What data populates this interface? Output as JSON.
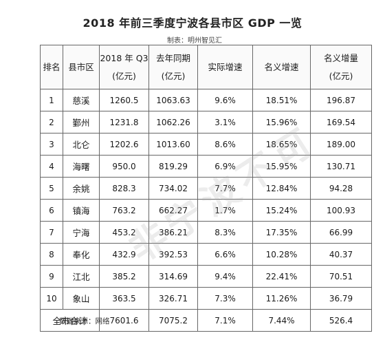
{
  "title": "2018 年前三季度宁波各县市区 GDP 一览",
  "maker": "制表：明州智见汇",
  "table": {
    "headers": {
      "rank": "排名",
      "county": "县市区",
      "q3": [
        "2018 年 Q3",
        "(亿元)"
      ],
      "last_year": [
        "去年同期",
        "(亿元)"
      ],
      "real_growth": "实际增速",
      "nominal_growth": "名义增速",
      "nominal_increase": [
        "名义增量",
        "(亿元)"
      ]
    },
    "rows": [
      {
        "rank": "1",
        "name": "慈溪",
        "q3": "1260.5",
        "last": "1063.63",
        "real": "9.6%",
        "nominal": "18.51%",
        "increase": "196.87"
      },
      {
        "rank": "2",
        "name": "鄞州",
        "q3": "1231.8",
        "last": "1062.26",
        "real": "3.1%",
        "nominal": "15.96%",
        "increase": "169.54"
      },
      {
        "rank": "3",
        "name": "北仑",
        "q3": "1202.6",
        "last": "1013.60",
        "real": "8.6%",
        "nominal": "18.65%",
        "increase": "189.00"
      },
      {
        "rank": "4",
        "name": "海曙",
        "q3": "950.0",
        "last": "819.29",
        "real": "6.9%",
        "nominal": "15.95%",
        "increase": "130.71"
      },
      {
        "rank": "5",
        "name": "余姚",
        "q3": "828.3",
        "last": "734.02",
        "real": "7.7%",
        "nominal": "12.84%",
        "increase": "94.28"
      },
      {
        "rank": "6",
        "name": "镇海",
        "q3": "763.2",
        "last": "662.27",
        "real": "1.7%",
        "nominal": "15.24%",
        "increase": "100.93"
      },
      {
        "rank": "7",
        "name": "宁海",
        "q3": "453.2",
        "last": "386.21",
        "real": "8.3%",
        "nominal": "17.35%",
        "increase": "66.99"
      },
      {
        "rank": "8",
        "name": "奉化",
        "q3": "432.9",
        "last": "392.53",
        "real": "6.6%",
        "nominal": "10.28%",
        "increase": "40.37"
      },
      {
        "rank": "9",
        "name": "江北",
        "q3": "385.2",
        "last": "314.69",
        "real": "9.4%",
        "nominal": "22.41%",
        "increase": "70.51"
      },
      {
        "rank": "10",
        "name": "象山",
        "q3": "363.5",
        "last": "326.71",
        "real": "7.3%",
        "nominal": "11.26%",
        "increase": "36.79"
      }
    ],
    "total": {
      "label": "全市合计",
      "q3": "7601.6",
      "last": "7075.2",
      "real": "7.1%",
      "nominal": "7.44%",
      "increase": "526.4"
    }
  },
  "source": "数据来源：网络",
  "watermark": "非宁波不可"
}
